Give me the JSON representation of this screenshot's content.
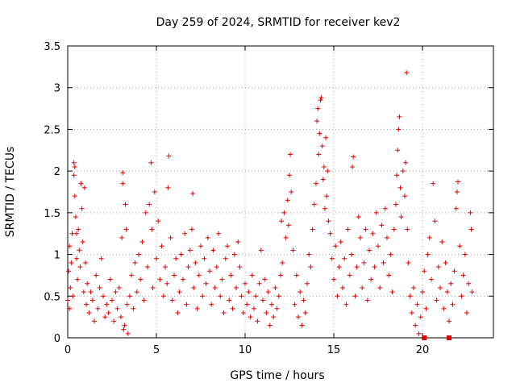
{
  "chart_data": {
    "type": "scatter",
    "title": "Day 259 of 2024, SRMTID for receiver kev2",
    "xlabel": "GPS time / hours",
    "ylabel": "SRMTID / TECUs",
    "xlim": [
      0,
      24
    ],
    "ylim": [
      0,
      3.5
    ],
    "xticks": [
      0,
      5,
      10,
      15,
      20
    ],
    "xtick_labels": [
      "0",
      "5",
      "10",
      "15",
      "20"
    ],
    "yticks": [
      0,
      0.5,
      1,
      1.5,
      2,
      2.5,
      3,
      3.5
    ],
    "ytick_labels": [
      "0",
      "0.5",
      "1",
      "1.5",
      "2",
      "2.5",
      "3",
      "3.5"
    ],
    "grid": true,
    "marker": "plus",
    "color": "#e00000",
    "series": [
      {
        "name": "kev2",
        "points": [
          [
            0.0,
            0.45
          ],
          [
            0.05,
            0.8
          ],
          [
            0.1,
            1.1
          ],
          [
            0.1,
            0.35
          ],
          [
            0.15,
            0.6
          ],
          [
            0.2,
            0.9
          ],
          [
            0.25,
            1.25
          ],
          [
            0.3,
            0.5
          ],
          [
            0.35,
            1.95
          ],
          [
            0.35,
            2.1
          ],
          [
            0.4,
            2.05
          ],
          [
            0.4,
            1.7
          ],
          [
            0.45,
            1.45
          ],
          [
            0.5,
            1.25
          ],
          [
            0.5,
            0.95
          ],
          [
            0.55,
            0.7
          ],
          [
            0.6,
            1.3
          ],
          [
            0.65,
            1.05
          ],
          [
            0.7,
            0.85
          ],
          [
            0.75,
            1.85
          ],
          [
            0.8,
            1.55
          ],
          [
            0.85,
            1.15
          ],
          [
            0.9,
            0.55
          ],
          [
            0.95,
            1.8
          ],
          [
            1.0,
            0.9
          ],
          [
            1.05,
            0.4
          ],
          [
            1.1,
            0.65
          ],
          [
            1.2,
            0.3
          ],
          [
            1.3,
            0.55
          ],
          [
            1.4,
            0.45
          ],
          [
            1.5,
            0.2
          ],
          [
            1.6,
            0.75
          ],
          [
            1.7,
            0.35
          ],
          [
            1.8,
            0.6
          ],
          [
            1.9,
            0.95
          ],
          [
            2.0,
            0.5
          ],
          [
            2.1,
            0.25
          ],
          [
            2.2,
            0.4
          ],
          [
            2.3,
            0.3
          ],
          [
            2.4,
            0.7
          ],
          [
            2.5,
            0.45
          ],
          [
            2.6,
            0.2
          ],
          [
            2.7,
            0.55
          ],
          [
            2.8,
            0.35
          ],
          [
            2.9,
            0.6
          ],
          [
            3.0,
            0.25
          ],
          [
            3.05,
            1.2
          ],
          [
            3.1,
            1.85
          ],
          [
            3.1,
            1.98
          ],
          [
            3.15,
            0.1
          ],
          [
            3.2,
            0.15
          ],
          [
            3.25,
            1.6
          ],
          [
            3.3,
            1.3
          ],
          [
            3.35,
            0.4
          ],
          [
            3.4,
            0.05
          ],
          [
            3.5,
            0.5
          ],
          [
            3.6,
            0.75
          ],
          [
            3.7,
            0.35
          ],
          [
            3.8,
            0.9
          ],
          [
            3.9,
            0.55
          ],
          [
            4.0,
            1.0
          ],
          [
            4.1,
            0.7
          ],
          [
            4.2,
            1.15
          ],
          [
            4.3,
            0.45
          ],
          [
            4.4,
            1.5
          ],
          [
            4.5,
            0.85
          ],
          [
            4.6,
            1.6
          ],
          [
            4.7,
            2.1
          ],
          [
            4.75,
            1.3
          ],
          [
            4.8,
            0.6
          ],
          [
            4.9,
            1.75
          ],
          [
            5.0,
            0.95
          ],
          [
            5.1,
            1.4
          ],
          [
            5.2,
            0.7
          ],
          [
            5.3,
            1.1
          ],
          [
            5.4,
            0.5
          ],
          [
            5.5,
            0.85
          ],
          [
            5.6,
            0.65
          ],
          [
            5.65,
            1.8
          ],
          [
            5.7,
            2.18
          ],
          [
            5.8,
            1.2
          ],
          [
            5.9,
            0.45
          ],
          [
            6.0,
            0.75
          ],
          [
            6.1,
            0.95
          ],
          [
            6.2,
            0.3
          ],
          [
            6.3,
            0.55
          ],
          [
            6.4,
            1.0
          ],
          [
            6.5,
            0.7
          ],
          [
            6.6,
            1.25
          ],
          [
            6.7,
            0.4
          ],
          [
            6.8,
            0.85
          ],
          [
            6.9,
            1.05
          ],
          [
            7.0,
            1.3
          ],
          [
            7.05,
            1.73
          ],
          [
            7.1,
            0.6
          ],
          [
            7.2,
            0.9
          ],
          [
            7.3,
            0.35
          ],
          [
            7.4,
            0.75
          ],
          [
            7.5,
            1.1
          ],
          [
            7.6,
            0.5
          ],
          [
            7.7,
            0.95
          ],
          [
            7.8,
            0.65
          ],
          [
            7.9,
            1.2
          ],
          [
            8.0,
            0.8
          ],
          [
            8.1,
            0.4
          ],
          [
            8.2,
            1.05
          ],
          [
            8.3,
            0.6
          ],
          [
            8.4,
            0.85
          ],
          [
            8.5,
            1.25
          ],
          [
            8.6,
            0.5
          ],
          [
            8.7,
            0.7
          ],
          [
            8.8,
            0.3
          ],
          [
            8.9,
            0.95
          ],
          [
            9.0,
            1.1
          ],
          [
            9.1,
            0.45
          ],
          [
            9.2,
            0.75
          ],
          [
            9.3,
            0.35
          ],
          [
            9.4,
            1.0
          ],
          [
            9.5,
            0.6
          ],
          [
            9.6,
            1.15
          ],
          [
            9.7,
            0.85
          ],
          [
            9.8,
            0.5
          ],
          [
            9.9,
            0.3
          ],
          [
            10.0,
            0.65
          ],
          [
            10.1,
            0.4
          ],
          [
            10.2,
            0.55
          ],
          [
            10.3,
            0.25
          ],
          [
            10.4,
            0.75
          ],
          [
            10.5,
            0.35
          ],
          [
            10.6,
            0.5
          ],
          [
            10.7,
            0.2
          ],
          [
            10.8,
            0.65
          ],
          [
            10.9,
            1.05
          ],
          [
            11.0,
            0.45
          ],
          [
            11.1,
            0.7
          ],
          [
            11.2,
            0.3
          ],
          [
            11.3,
            0.55
          ],
          [
            11.4,
            0.15
          ],
          [
            11.5,
            0.4
          ],
          [
            11.6,
            0.25
          ],
          [
            11.7,
            0.6
          ],
          [
            11.8,
            0.35
          ],
          [
            11.9,
            0.5
          ],
          [
            12.0,
            0.75
          ],
          [
            12.05,
            1.4
          ],
          [
            12.1,
            0.9
          ],
          [
            12.2,
            1.5
          ],
          [
            12.3,
            1.2
          ],
          [
            12.4,
            1.65
          ],
          [
            12.45,
            1.35
          ],
          [
            12.5,
            1.95
          ],
          [
            12.55,
            2.2
          ],
          [
            12.6,
            1.75
          ],
          [
            12.7,
            1.05
          ],
          [
            12.8,
            0.4
          ],
          [
            12.9,
            0.75
          ],
          [
            13.0,
            0.25
          ],
          [
            13.1,
            0.55
          ],
          [
            13.2,
            0.15
          ],
          [
            13.3,
            0.45
          ],
          [
            13.4,
            0.3
          ],
          [
            13.5,
            0.65
          ],
          [
            13.6,
            1.0
          ],
          [
            13.7,
            0.85
          ],
          [
            13.8,
            1.3
          ],
          [
            13.9,
            1.6
          ],
          [
            14.0,
            1.85
          ],
          [
            14.05,
            2.6
          ],
          [
            14.1,
            2.75
          ],
          [
            14.15,
            2.2
          ],
          [
            14.2,
            2.45
          ],
          [
            14.25,
            2.85
          ],
          [
            14.3,
            2.88
          ],
          [
            14.35,
            2.3
          ],
          [
            14.4,
            1.9
          ],
          [
            14.45,
            2.05
          ],
          [
            14.5,
            1.55
          ],
          [
            14.55,
            2.4
          ],
          [
            14.6,
            1.7
          ],
          [
            14.65,
            2.0
          ],
          [
            14.7,
            1.4
          ],
          [
            14.8,
            1.25
          ],
          [
            14.9,
            0.95
          ],
          [
            15.0,
            0.7
          ],
          [
            15.1,
            1.1
          ],
          [
            15.2,
            0.5
          ],
          [
            15.3,
            0.85
          ],
          [
            15.4,
            1.15
          ],
          [
            15.5,
            0.6
          ],
          [
            15.6,
            0.95
          ],
          [
            15.7,
            0.4
          ],
          [
            15.8,
            1.3
          ],
          [
            15.9,
            0.75
          ],
          [
            16.0,
            1.0
          ],
          [
            16.05,
            2.05
          ],
          [
            16.1,
            2.17
          ],
          [
            16.2,
            0.5
          ],
          [
            16.3,
            0.85
          ],
          [
            16.4,
            1.45
          ],
          [
            16.5,
            1.2
          ],
          [
            16.6,
            0.6
          ],
          [
            16.7,
            0.9
          ],
          [
            16.8,
            1.3
          ],
          [
            16.9,
            0.45
          ],
          [
            17.0,
            1.05
          ],
          [
            17.1,
            0.7
          ],
          [
            17.2,
            1.25
          ],
          [
            17.3,
            0.85
          ],
          [
            17.4,
            1.5
          ],
          [
            17.5,
            1.1
          ],
          [
            17.6,
            0.6
          ],
          [
            17.7,
            1.35
          ],
          [
            17.8,
            0.9
          ],
          [
            17.9,
            1.55
          ],
          [
            18.0,
            1.2
          ],
          [
            18.1,
            0.75
          ],
          [
            18.2,
            1.0
          ],
          [
            18.3,
            0.55
          ],
          [
            18.4,
            1.3
          ],
          [
            18.5,
            1.6
          ],
          [
            18.55,
            1.95
          ],
          [
            18.6,
            2.25
          ],
          [
            18.65,
            2.5
          ],
          [
            18.7,
            2.65
          ],
          [
            18.75,
            1.8
          ],
          [
            18.8,
            1.45
          ],
          [
            18.9,
            2.0
          ],
          [
            19.0,
            1.7
          ],
          [
            19.05,
            2.1
          ],
          [
            19.1,
            3.18
          ],
          [
            19.15,
            1.3
          ],
          [
            19.2,
            0.9
          ],
          [
            19.3,
            0.5
          ],
          [
            19.4,
            0.3
          ],
          [
            19.5,
            0.6
          ],
          [
            19.6,
            0.15
          ],
          [
            19.7,
            0.4
          ],
          [
            19.8,
            0.05
          ],
          [
            19.9,
            0.25
          ],
          [
            20.0,
            0.55
          ],
          [
            20.1,
            0.8
          ],
          [
            20.2,
            0.35
          ],
          [
            20.3,
            1.0
          ],
          [
            20.4,
            1.2
          ],
          [
            20.5,
            0.7
          ],
          [
            20.6,
            1.85
          ],
          [
            20.7,
            1.4
          ],
          [
            20.8,
            0.45
          ],
          [
            20.9,
            0.85
          ],
          [
            21.0,
            0.6
          ],
          [
            21.1,
            1.15
          ],
          [
            21.2,
            0.35
          ],
          [
            21.3,
            0.9
          ],
          [
            21.4,
            0.55
          ],
          [
            21.5,
            0.2
          ],
          [
            21.6,
            0.65
          ],
          [
            21.7,
            0.4
          ],
          [
            21.8,
            0.8
          ],
          [
            21.9,
            1.55
          ],
          [
            21.95,
            1.75
          ],
          [
            22.0,
            1.87
          ],
          [
            22.1,
            1.1
          ],
          [
            22.2,
            0.5
          ],
          [
            22.3,
            0.75
          ],
          [
            22.4,
            1.0
          ],
          [
            22.5,
            0.3
          ],
          [
            22.6,
            0.65
          ],
          [
            22.7,
            1.5
          ],
          [
            22.75,
            1.3
          ],
          [
            22.8,
            0.55
          ]
        ]
      }
    ],
    "outliers_square": [
      [
        20.1,
        0.0
      ],
      [
        21.5,
        0.0
      ]
    ]
  }
}
